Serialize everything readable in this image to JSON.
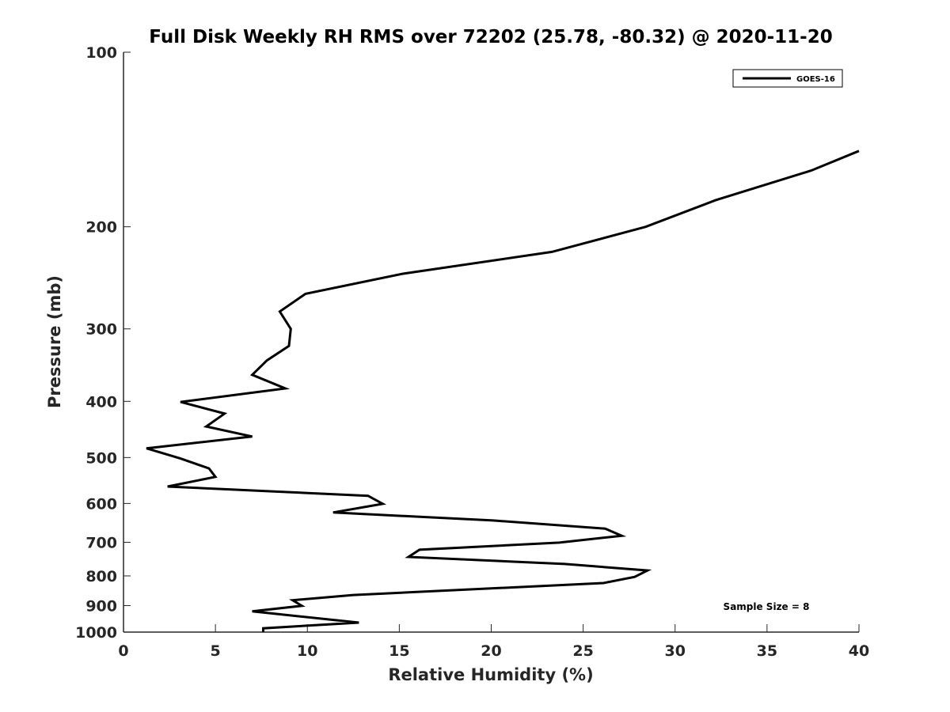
{
  "chart_data": {
    "type": "line",
    "title": "Full Disk Weekly RH RMS over 72202 (25.78, -80.32) @ 2020-11-20",
    "xlabel": "Relative Humidity (%)",
    "ylabel": "Pressure (mb)",
    "xlim": [
      0,
      40
    ],
    "ylim": [
      100,
      1000
    ],
    "yscale": "log",
    "yreversed": true,
    "xticks": [
      0,
      5,
      10,
      15,
      20,
      25,
      30,
      35,
      40
    ],
    "yticks": [
      100,
      200,
      300,
      400,
      500,
      600,
      700,
      800,
      900,
      1000
    ],
    "grid": false,
    "legend": {
      "entries": [
        "GOES-16"
      ],
      "placement": "top-right"
    },
    "annotation": "Sample Size = 8",
    "series": [
      {
        "name": "GOES-16",
        "color": "#000000",
        "points": [
          [
            40.0,
            148
          ],
          [
            37.4,
            160
          ],
          [
            32.2,
            180
          ],
          [
            28.4,
            200
          ],
          [
            23.3,
            221
          ],
          [
            15.2,
            241
          ],
          [
            9.9,
            261
          ],
          [
            8.5,
            280
          ],
          [
            9.1,
            300
          ],
          [
            9.0,
            321
          ],
          [
            7.8,
            340
          ],
          [
            7.0,
            360
          ],
          [
            8.8,
            380
          ],
          [
            3.1,
            401
          ],
          [
            5.5,
            420
          ],
          [
            4.5,
            442
          ],
          [
            7.0,
            460
          ],
          [
            1.25,
            482
          ],
          [
            3.1,
            502
          ],
          [
            4.65,
            522
          ],
          [
            5.0,
            540
          ],
          [
            2.4,
            561
          ],
          [
            13.3,
            582
          ],
          [
            14.1,
            601
          ],
          [
            11.4,
            622
          ],
          [
            20.1,
            642
          ],
          [
            26.2,
            663
          ],
          [
            27.1,
            682
          ],
          [
            23.7,
            701
          ],
          [
            16.1,
            721
          ],
          [
            15.5,
            742
          ],
          [
            24.0,
            763
          ],
          [
            28.5,
            783
          ],
          [
            27.8,
            803
          ],
          [
            26.1,
            823
          ],
          [
            12.5,
            863
          ],
          [
            9.2,
            881
          ],
          [
            9.7,
            901
          ],
          [
            7.0,
            921
          ],
          [
            12.8,
            963
          ],
          [
            7.6,
            985
          ],
          [
            7.6,
            1000
          ]
        ]
      }
    ]
  }
}
